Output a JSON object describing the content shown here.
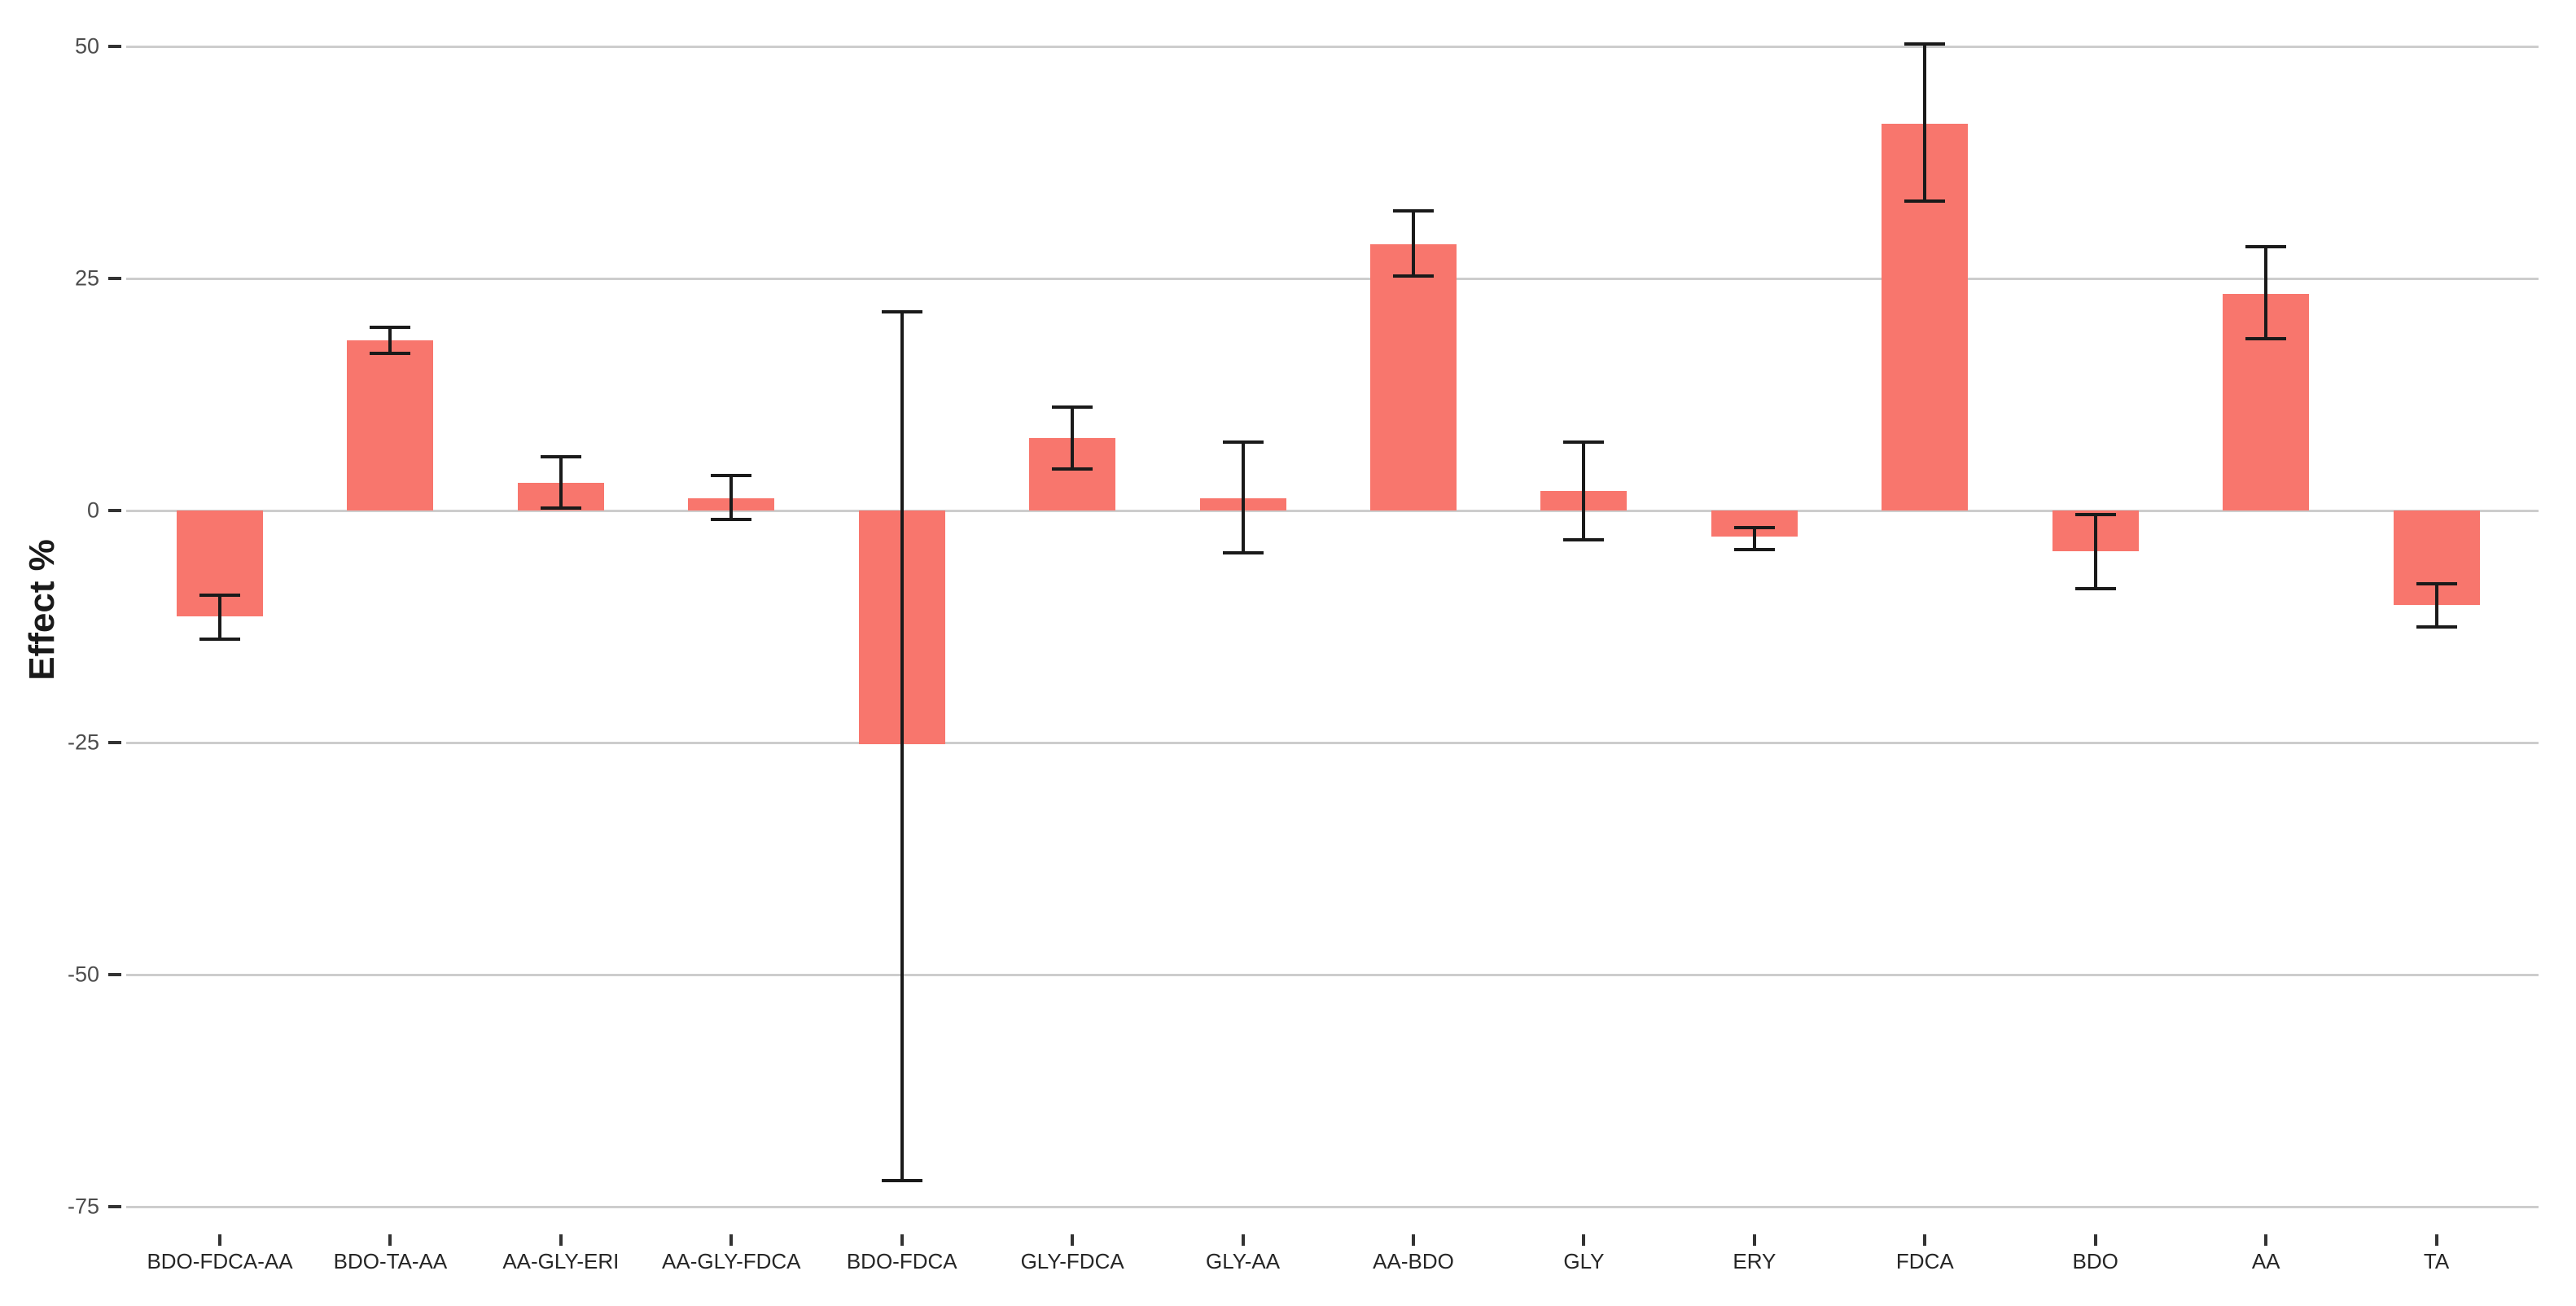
{
  "chart_data": {
    "type": "bar",
    "title": "",
    "xlabel": "",
    "ylabel": "Effect %",
    "legend": "none",
    "grid": "horizontal-major",
    "categories": [
      "BDO-FDCA-AA",
      "BDO-TA-AA",
      "AA-GLY-ERI",
      "AA-GLY-FDCA",
      "BDO-FDCA",
      "GLY-FDCA",
      "GLY-AA",
      "AA-BDO",
      "GLY",
      "ERY",
      "FDCA",
      "BDO",
      "AA",
      "TA"
    ],
    "values": [
      -11.4,
      18.3,
      3.0,
      1.3,
      -25.2,
      7.8,
      1.3,
      28.7,
      2.1,
      -2.8,
      41.7,
      -4.4,
      23.3,
      -10.2
    ],
    "error_low": [
      -13.9,
      16.9,
      0.3,
      -1.0,
      -72.2,
      4.5,
      -4.6,
      25.3,
      -3.2,
      -4.2,
      33.3,
      -8.4,
      18.5,
      -12.5
    ],
    "error_high": [
      -9.1,
      19.7,
      5.8,
      3.8,
      21.4,
      11.1,
      7.4,
      32.3,
      7.4,
      -1.8,
      50.3,
      -0.4,
      28.4,
      -7.9
    ],
    "ytick_labels": [
      "50",
      "25",
      "0",
      "-25",
      "-50",
      "-75"
    ],
    "yticks": [
      50,
      25,
      0,
      -25,
      -50,
      -75
    ],
    "ylim": [
      -85,
      55
    ],
    "bar_color": "#F8766D",
    "errorbar_color": "#1A1A1A",
    "gridline_color": "#CDCDCD",
    "axis_tick_color": "#333333",
    "y_axis_text_color": "#4D4D4D",
    "x_axis_text_color": "#262626",
    "background_color": "#FFFFFF"
  }
}
